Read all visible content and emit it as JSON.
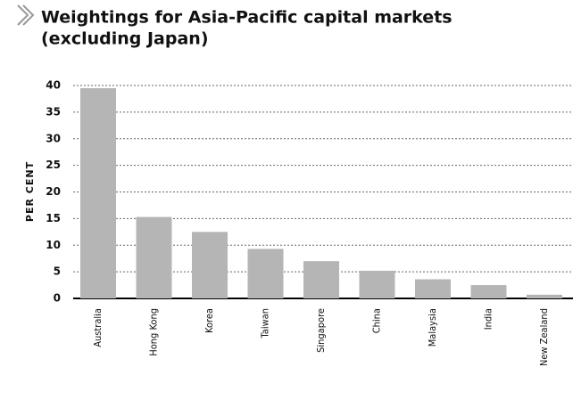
{
  "chart_data": {
    "type": "bar",
    "title_lines": [
      "Weightings for Asia-Pacific capital markets",
      "(excluding Japan)"
    ],
    "y_label": "PER CENT",
    "categories": [
      "Australia",
      "Hong Kong",
      "Korea",
      "Taiwan",
      "Singapore",
      "China",
      "Malaysia",
      "India",
      "New Zealand"
    ],
    "values": [
      39.5,
      15.3,
      12.5,
      9.3,
      7,
      5.2,
      3.6,
      2.5,
      0.7
    ],
    "color": "#b5b5b5",
    "ylim": [
      0,
      40
    ],
    "yticks": [
      0,
      5,
      10,
      15,
      20,
      25,
      30,
      35,
      40
    ],
    "grid": true
  }
}
